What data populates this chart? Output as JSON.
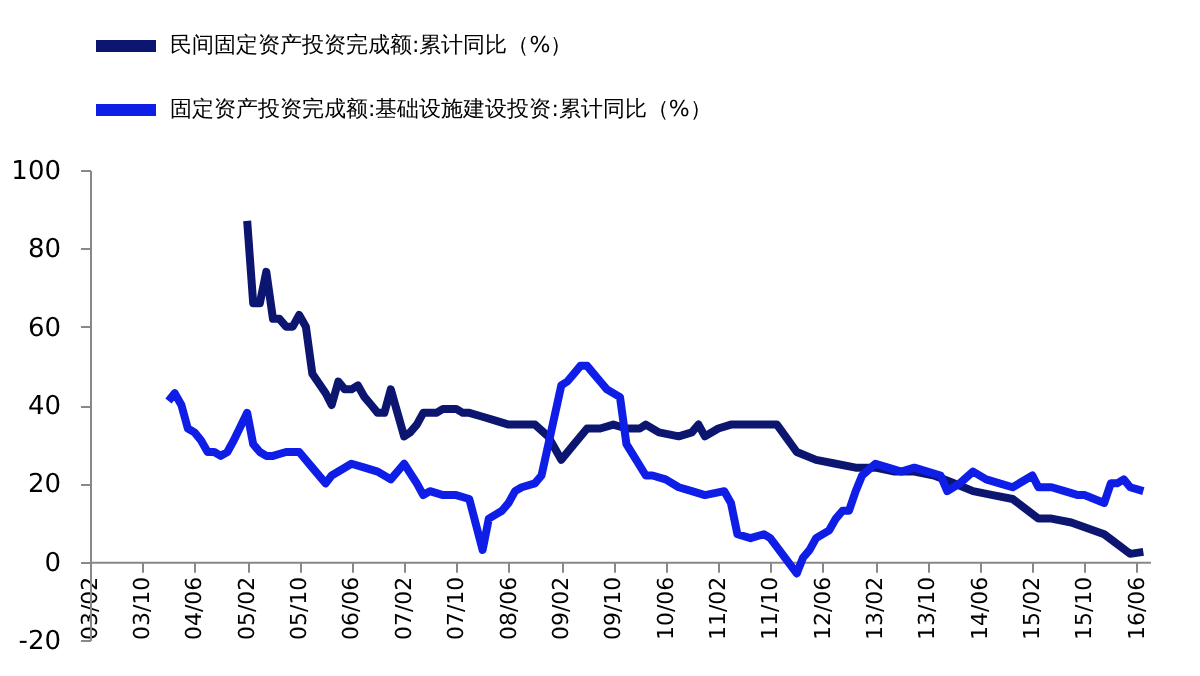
{
  "chart_data": {
    "type": "line",
    "series": [
      {
        "name": "民间固定资产投资完成额:累计同比（%）",
        "color": "#0c1670",
        "x": [
          "2005-02",
          "2005-03",
          "2005-04",
          "2005-05",
          "2005-06",
          "2005-07",
          "2005-08",
          "2005-09",
          "2005-10",
          "2005-11",
          "2005-12",
          "2006-02",
          "2006-03",
          "2006-04",
          "2006-05",
          "2006-06",
          "2006-07",
          "2006-08",
          "2006-09",
          "2006-10",
          "2006-11",
          "2006-12",
          "2007-02",
          "2007-03",
          "2007-04",
          "2007-05",
          "2007-06",
          "2007-07",
          "2007-08",
          "2007-10",
          "2007-11",
          "2007-12",
          "2008-02",
          "2008-04",
          "2008-06",
          "2008-08",
          "2008-10",
          "2008-12",
          "2009-02",
          "2009-04",
          "2009-06",
          "2009-08",
          "2009-10",
          "2009-12",
          "2010-02",
          "2010-03",
          "2010-05",
          "2010-08",
          "2010-10",
          "2010-11",
          "2010-12",
          "2011-02",
          "2011-04",
          "2011-06",
          "2011-08",
          "2011-11",
          "2012-02",
          "2012-05",
          "2012-08",
          "2012-11",
          "2013-02",
          "2013-05",
          "2013-08",
          "2013-11",
          "2014-02",
          "2014-05",
          "2014-08",
          "2014-11",
          "2015-03",
          "2015-05",
          "2015-08",
          "2016-01",
          "2016-05",
          "2016-07"
        ],
        "values": [
          87,
          66,
          66,
          74,
          62,
          62,
          60,
          60,
          63,
          60,
          48,
          43,
          40,
          46,
          44,
          44,
          45,
          42,
          40,
          38,
          38,
          44,
          32,
          33,
          35,
          38,
          38,
          38,
          39,
          39,
          38,
          38,
          37,
          36,
          35,
          35,
          35,
          32,
          26,
          30,
          34,
          34,
          35,
          34,
          34,
          35,
          33,
          32,
          33,
          35,
          32,
          34,
          35,
          35,
          35,
          35,
          28,
          26,
          25,
          24,
          24,
          23,
          23,
          22,
          20,
          18,
          17,
          16,
          11,
          11,
          10,
          7,
          2,
          2.5
        ]
      },
      {
        "name": "固定资产投资完成额:基础设施建设投资:累计同比（%）",
        "color": "#0f1ee6",
        "x": [
          "2004-02",
          "2004-03",
          "2004-04",
          "2004-05",
          "2004-06",
          "2004-07",
          "2004-08",
          "2004-09",
          "2004-10",
          "2004-11",
          "2004-12",
          "2005-02",
          "2005-03",
          "2005-04",
          "2005-05",
          "2005-06",
          "2005-08",
          "2005-10",
          "2005-12",
          "2006-02",
          "2006-03",
          "2006-06",
          "2006-08",
          "2006-10",
          "2006-12",
          "2007-02",
          "2007-04",
          "2007-05",
          "2007-06",
          "2007-08",
          "2007-10",
          "2007-12",
          "2008-02",
          "2008-03",
          "2008-04",
          "2008-05",
          "2008-06",
          "2008-07",
          "2008-08",
          "2008-10",
          "2008-11",
          "2009-02",
          "2009-03",
          "2009-04",
          "2009-05",
          "2009-06",
          "2009-07",
          "2009-08",
          "2009-09",
          "2009-11",
          "2009-12",
          "2010-03",
          "2010-04",
          "2010-06",
          "2010-08",
          "2010-10",
          "2010-12",
          "2011-03",
          "2011-04",
          "2011-05",
          "2011-07",
          "2011-09",
          "2011-10",
          "2012-02",
          "2012-03",
          "2012-04",
          "2012-05",
          "2012-07",
          "2012-08",
          "2012-09",
          "2012-10",
          "2012-11",
          "2012-12",
          "2013-02",
          "2013-04",
          "2013-06",
          "2013-08",
          "2013-10",
          "2013-12",
          "2014-01",
          "2014-03",
          "2014-05",
          "2014-07",
          "2014-09",
          "2014-11",
          "2015-02",
          "2015-03",
          "2015-05",
          "2015-07",
          "2015-09",
          "2015-10",
          "2016-01",
          "2016-02",
          "2016-03",
          "2016-04",
          "2016-05",
          "2016-07"
        ],
        "values": [
          41,
          43,
          40,
          34,
          33,
          31,
          28,
          28,
          27,
          28,
          31,
          38,
          30,
          28,
          27,
          27,
          28,
          28,
          24,
          20,
          22,
          25,
          24,
          23,
          21,
          25,
          20,
          17,
          18,
          17,
          17,
          16,
          3,
          11,
          12,
          13,
          15,
          18,
          19,
          20,
          22,
          45,
          46,
          48,
          50,
          50,
          48,
          46,
          44,
          42,
          30,
          22,
          22,
          21,
          19,
          18,
          17,
          18,
          15,
          7,
          6,
          7,
          6,
          -3,
          1,
          3,
          6,
          8,
          11,
          13,
          13,
          18,
          22,
          25,
          24,
          23,
          24,
          23,
          22,
          18,
          20,
          23,
          21,
          20,
          19,
          22,
          19,
          19,
          18,
          17,
          17,
          15,
          20,
          20,
          21,
          19,
          18
        ]
      }
    ],
    "xlim": [
      "2003-02",
      "2016-08"
    ],
    "xticks": [
      {
        "value": "2003-02",
        "label": "03/02"
      },
      {
        "value": "2003-10",
        "label": "03/10"
      },
      {
        "value": "2004-06",
        "label": "04/06"
      },
      {
        "value": "2005-02",
        "label": "05/02"
      },
      {
        "value": "2005-10",
        "label": "05/10"
      },
      {
        "value": "2006-06",
        "label": "06/06"
      },
      {
        "value": "2007-02",
        "label": "07/02"
      },
      {
        "value": "2007-10",
        "label": "07/10"
      },
      {
        "value": "2008-06",
        "label": "08/06"
      },
      {
        "value": "2009-02",
        "label": "09/02"
      },
      {
        "value": "2009-10",
        "label": "09/10"
      },
      {
        "value": "2010-06",
        "label": "10/06"
      },
      {
        "value": "2011-02",
        "label": "11/02"
      },
      {
        "value": "2011-10",
        "label": "11/10"
      },
      {
        "value": "2012-06",
        "label": "12/06"
      },
      {
        "value": "2013-02",
        "label": "13/02"
      },
      {
        "value": "2013-10",
        "label": "13/10"
      },
      {
        "value": "2014-06",
        "label": "14/06"
      },
      {
        "value": "2015-02",
        "label": "15/02"
      },
      {
        "value": "2015-10",
        "label": "15/10"
      },
      {
        "value": "2016-06",
        "label": "16/06"
      }
    ],
    "ylim": [
      -20,
      100
    ],
    "yticks": [
      -20,
      0,
      20,
      40,
      60,
      80,
      100
    ],
    "grid": false,
    "legend": "top",
    "marker": "none",
    "line_style": "solid"
  }
}
